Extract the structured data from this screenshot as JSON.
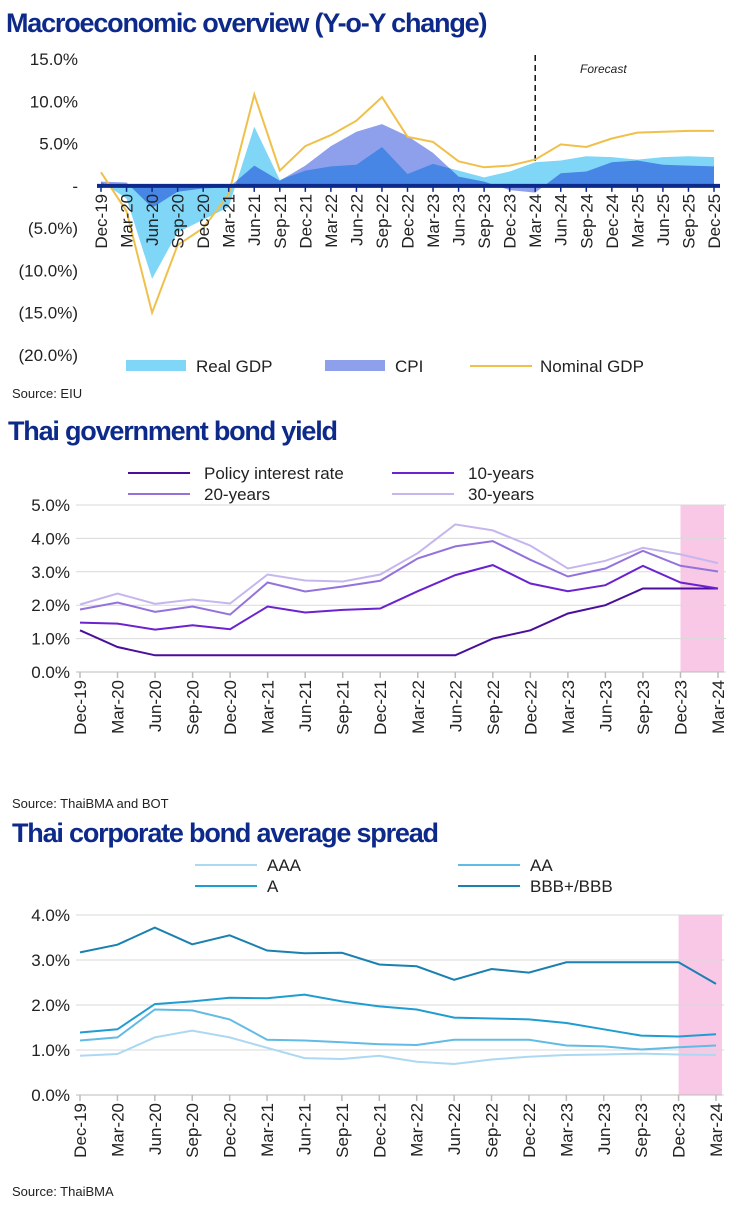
{
  "chart_data": [
    {
      "type": "area",
      "title": "Macroeconomic overview (Y-o-Y change)",
      "source": "Source: EIU",
      "annotation": "Forecast",
      "forecast_start": "Mar-24",
      "categories": [
        "Dec-19",
        "Mar-20",
        "Jun-20",
        "Sep-20",
        "Dec-20",
        "Mar-21",
        "Jun-21",
        "Sep-21",
        "Dec-21",
        "Mar-22",
        "Jun-22",
        "Sep-22",
        "Dec-22",
        "Mar-23",
        "Jun-23",
        "Sep-23",
        "Dec-23",
        "Mar-24",
        "Jun-24",
        "Sep-24",
        "Dec-24",
        "Mar-25",
        "Jun-25",
        "Sep-25",
        "Dec-25"
      ],
      "ylim": [
        -20,
        15
      ],
      "yticks": [
        "15.0%",
        "10.0%",
        "5.0%",
        "-",
        "(5.0%)",
        "(10.0%)",
        "(15.0%)",
        "(20.0%)"
      ],
      "ytick_values": [
        15,
        10,
        5,
        0,
        -5,
        -10,
        -15,
        -20
      ],
      "legend_position": "bottom",
      "series": [
        {
          "name": "Real GDP",
          "kind": "area",
          "color": "#7fd6f7",
          "values": [
            0.5,
            -1.5,
            -11,
            -5.5,
            -4,
            -2.5,
            7.0,
            0.7,
            1.8,
            2.3,
            2.5,
            4.6,
            1.4,
            2.6,
            1.8,
            1.0,
            1.7,
            2.8,
            3.0,
            3.5,
            3.4,
            3.1,
            3.4,
            3.5,
            3.4
          ]
        },
        {
          "name": "CPI",
          "kind": "area",
          "color": "#8ea0ec",
          "values": [
            0.5,
            0.4,
            -2.6,
            -0.7,
            -0.3,
            -0.2,
            2.4,
            0.6,
            2.4,
            4.7,
            6.4,
            7.3,
            5.9,
            3.9,
            1.1,
            0.5,
            -0.5,
            -0.8,
            1.5,
            1.7,
            2.8,
            3.0,
            2.5,
            2.4,
            2.3
          ]
        },
        {
          "name": "Nominal GDP",
          "kind": "line",
          "color": "#f0c04a",
          "values": [
            1.6,
            -3,
            -15,
            -7,
            -5,
            -1,
            10.8,
            1.8,
            4.7,
            6.0,
            7.7,
            10.5,
            5.8,
            5.2,
            2.9,
            2.2,
            2.4,
            3.1,
            4.9,
            4.6,
            5.6,
            6.3,
            6.4,
            6.5,
            6.5
          ]
        }
      ]
    },
    {
      "type": "line",
      "title": "Thai government bond yield",
      "source": "Source: ThaiBMA and BOT",
      "categories": [
        "Dec-19",
        "Mar-20",
        "Jun-20",
        "Sep-20",
        "Dec-20",
        "Mar-21",
        "Jun-21",
        "Sep-21",
        "Dec-21",
        "Mar-22",
        "Jun-22",
        "Sep-22",
        "Dec-22",
        "Mar-23",
        "Jun-23",
        "Sep-23",
        "Dec-23",
        "Mar-24"
      ],
      "ylim": [
        0,
        5
      ],
      "yticks": [
        "0.0%",
        "1.0%",
        "2.0%",
        "3.0%",
        "4.0%",
        "5.0%"
      ],
      "ytick_values": [
        0,
        1,
        2,
        3,
        4,
        5
      ],
      "grid": true,
      "legend_position": "top",
      "highlight": {
        "from": "Dec-23",
        "to": "Mar-24",
        "color": "#f9c8e6"
      },
      "series": [
        {
          "name": "Policy interest rate",
          "color": "#4a0f9a",
          "values": [
            1.25,
            0.75,
            0.5,
            0.5,
            0.5,
            0.5,
            0.5,
            0.5,
            0.5,
            0.5,
            0.5,
            1.0,
            1.25,
            1.75,
            2.0,
            2.5,
            2.5,
            2.5
          ]
        },
        {
          "name": "10-years",
          "color": "#6b22cf",
          "values": [
            1.48,
            1.45,
            1.27,
            1.4,
            1.28,
            1.96,
            1.78,
            1.86,
            1.9,
            2.42,
            2.9,
            3.2,
            2.65,
            2.42,
            2.6,
            3.18,
            2.68,
            2.5
          ]
        },
        {
          "name": "20-years",
          "color": "#9472dc",
          "values": [
            1.87,
            2.08,
            1.8,
            1.96,
            1.72,
            2.68,
            2.41,
            2.56,
            2.73,
            3.4,
            3.76,
            3.92,
            3.36,
            2.86,
            3.1,
            3.63,
            3.18,
            3.01
          ]
        },
        {
          "name": "30-years",
          "color": "#c7b6ee",
          "values": [
            2.02,
            2.35,
            2.04,
            2.17,
            2.05,
            2.92,
            2.74,
            2.71,
            2.92,
            3.56,
            4.42,
            4.24,
            3.78,
            3.1,
            3.33,
            3.72,
            3.52,
            3.26
          ]
        }
      ]
    },
    {
      "type": "line",
      "title": "Thai corporate bond average spread",
      "source": "Source: ThaiBMA",
      "categories": [
        "Dec-19",
        "Mar-20",
        "Jun-20",
        "Sep-20",
        "Dec-20",
        "Mar-21",
        "Jun-21",
        "Sep-21",
        "Dec-21",
        "Mar-22",
        "Jun-22",
        "Sep-22",
        "Dec-22",
        "Mar-23",
        "Jun-23",
        "Sep-23",
        "Dec-23",
        "Mar-24"
      ],
      "ylim": [
        0,
        4
      ],
      "yticks": [
        "0.0%",
        "1.0%",
        "2.0%",
        "3.0%",
        "4.0%"
      ],
      "ytick_values": [
        0,
        1,
        2,
        3,
        4
      ],
      "grid": true,
      "legend_position": "top",
      "highlight": {
        "from": "Dec-23",
        "to": "Mar-24",
        "color": "#f9c8e6"
      },
      "series": [
        {
          "name": "AAA",
          "color": "#acd9f1",
          "values": [
            0.87,
            0.91,
            1.28,
            1.43,
            1.28,
            1.05,
            0.82,
            0.8,
            0.87,
            0.74,
            0.69,
            0.79,
            0.85,
            0.89,
            0.9,
            0.92,
            0.9,
            0.89
          ]
        },
        {
          "name": "AA",
          "color": "#62bbe4",
          "values": [
            1.21,
            1.28,
            1.9,
            1.88,
            1.68,
            1.23,
            1.21,
            1.17,
            1.13,
            1.11,
            1.23,
            1.23,
            1.23,
            1.1,
            1.08,
            1.01,
            1.06,
            1.1
          ]
        },
        {
          "name": "A",
          "color": "#1f9dd2",
          "values": [
            1.39,
            1.46,
            2.02,
            2.08,
            2.16,
            2.15,
            2.23,
            2.08,
            1.97,
            1.9,
            1.72,
            1.7,
            1.68,
            1.6,
            1.46,
            1.32,
            1.3,
            1.35
          ]
        },
        {
          "name": "BBB+/BBB",
          "color": "#1a80b0",
          "values": [
            3.17,
            3.34,
            3.72,
            3.35,
            3.55,
            3.21,
            3.15,
            3.16,
            2.9,
            2.86,
            2.56,
            2.8,
            2.72,
            2.95,
            2.95,
            2.95,
            2.95,
            2.47
          ]
        }
      ]
    }
  ]
}
